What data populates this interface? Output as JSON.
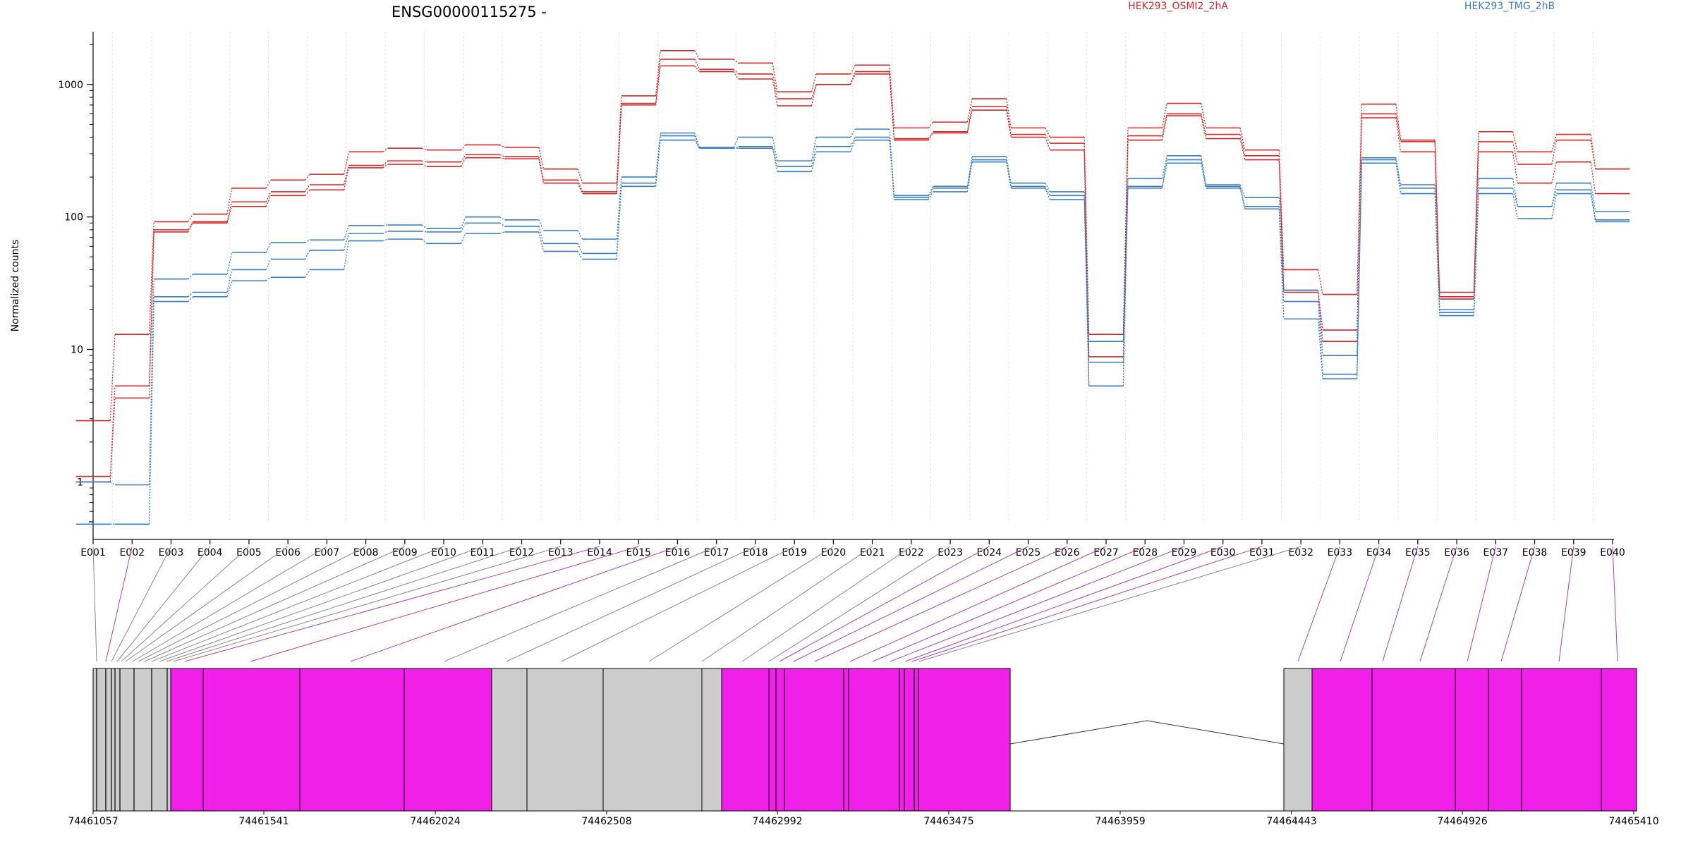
{
  "chart_data": {
    "type": "line",
    "title": "ENSG00000115275 -",
    "xlabel": "",
    "ylabel": "Normalized counts",
    "yscale": "log",
    "ylim": [
      0.5,
      2500
    ],
    "yticks": [
      1,
      10,
      100,
      1000
    ],
    "ytick_labels": [
      "1",
      "10",
      "100",
      "1000"
    ],
    "grid": "vertical dashed at exon boundaries",
    "legend_placement": "top",
    "colors": {
      "red": "#d62728",
      "blue": "#3b7fc0",
      "magenta": "#f020e8",
      "grey": "#cccccc",
      "map_line_magenta": "#b040b0",
      "map_line_grey": "#888888"
    },
    "categories": [
      "E001",
      "E002",
      "E003",
      "E004",
      "E005",
      "E006",
      "E007",
      "E008",
      "E009",
      "E010",
      "E011",
      "E012",
      "E013",
      "E014",
      "E015",
      "E016",
      "E017",
      "E018",
      "E019",
      "E020",
      "E021",
      "E022",
      "E023",
      "E024",
      "E025",
      "E026",
      "E027",
      "E028",
      "E029",
      "E030",
      "E031",
      "E032",
      "E033",
      "E034",
      "E035",
      "E036",
      "E037",
      "E038",
      "E039",
      "E040"
    ],
    "groups": [
      {
        "name": "HEK293_OSMI2_2hA",
        "color": "#d62728"
      },
      {
        "name": "HEK293_TMG_2hB",
        "color": "#3b7fc0"
      }
    ],
    "series": [
      {
        "group": "HEK293_OSMI2_2hA",
        "values": [
          2.9,
          13,
          92,
          105,
          165,
          190,
          210,
          310,
          330,
          320,
          350,
          335,
          230,
          180,
          820,
          1800,
          1550,
          1450,
          880,
          1200,
          1400,
          470,
          520,
          780,
          470,
          400,
          13,
          470,
          720,
          470,
          320,
          40,
          26,
          710,
          380,
          27,
          440,
          310,
          420,
          230
        ]
      },
      {
        "group": "HEK293_OSMI2_2hA",
        "values": [
          1.1,
          5.3,
          80,
          92,
          130,
          155,
          175,
          245,
          265,
          260,
          295,
          285,
          190,
          155,
          720,
          1550,
          1300,
          1200,
          780,
          1000,
          1250,
          390,
          440,
          680,
          420,
          360,
          8.8,
          410,
          600,
          420,
          290,
          28,
          14,
          600,
          370,
          25,
          370,
          250,
          380,
          230
        ]
      },
      {
        "group": "HEK293_OSMI2_2hA",
        "values": [
          1.0,
          4.3,
          77,
          90,
          120,
          145,
          160,
          235,
          250,
          240,
          280,
          275,
          180,
          150,
          700,
          1380,
          1250,
          1100,
          690,
          1000,
          1200,
          380,
          430,
          640,
          400,
          320,
          5.3,
          380,
          580,
          390,
          270,
          27,
          11.5,
          560,
          310,
          24,
          310,
          180,
          260,
          150
        ]
      },
      {
        "group": "HEK293_TMG_2hB",
        "values": [
          1.0,
          0.95,
          34,
          37,
          54,
          64,
          67,
          86,
          87,
          82,
          100,
          95,
          79,
          68,
          200,
          430,
          335,
          400,
          265,
          400,
          460,
          145,
          170,
          285,
          180,
          155,
          11.5,
          195,
          290,
          175,
          140,
          28,
          9,
          280,
          175,
          20,
          195,
          120,
          180,
          110
        ]
      },
      {
        "group": "HEK293_TMG_2hB",
        "values": [
          0.48,
          0.48,
          25,
          27,
          40,
          48,
          56,
          75,
          78,
          77,
          90,
          85,
          63,
          53,
          180,
          410,
          330,
          340,
          240,
          340,
          400,
          140,
          165,
          270,
          170,
          145,
          8.0,
          170,
          270,
          170,
          120,
          23,
          6.5,
          270,
          165,
          19,
          165,
          120,
          160,
          95
        ]
      },
      {
        "group": "HEK293_TMG_2hB",
        "values": [
          0.48,
          0.48,
          23,
          25,
          33,
          35,
          40,
          66,
          68,
          63,
          75,
          77,
          55,
          48,
          170,
          380,
          330,
          330,
          220,
          310,
          380,
          135,
          155,
          260,
          165,
          135,
          5.3,
          165,
          255,
          165,
          115,
          17,
          6.0,
          255,
          150,
          18,
          150,
          97,
          150,
          92
        ]
      }
    ],
    "genomic_axis": {
      "tick_labels": [
        "74461057",
        "74461541",
        "74462024",
        "74462508",
        "74462992",
        "74463475",
        "74463959",
        "74464443",
        "74464926",
        "74465410"
      ]
    }
  }
}
